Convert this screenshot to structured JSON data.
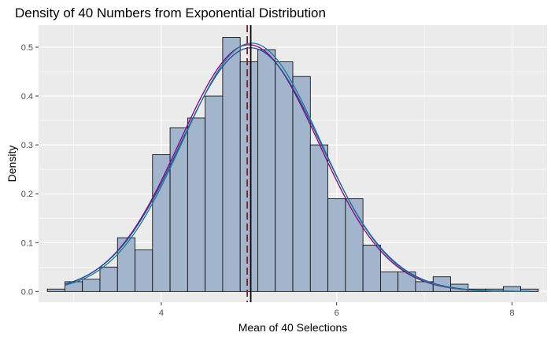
{
  "chart_data": {
    "type": "bar",
    "subtype": "histogram-with-density",
    "title": "Density of 40 Numbers from Exponential Distribution",
    "xlabel": "Mean of 40 Selections",
    "ylabel": "Density",
    "xlim": [
      2.6,
      8.4
    ],
    "ylim": [
      -0.022,
      0.545
    ],
    "x_ticks": [
      4,
      6,
      8
    ],
    "x_minor_ticks": [
      3,
      5,
      7
    ],
    "y_ticks": [
      0.0,
      0.1,
      0.2,
      0.3,
      0.4,
      0.5
    ],
    "y_tick_labels": [
      "0.0",
      "0.1",
      "0.2",
      "0.3",
      "0.4",
      "0.5"
    ],
    "grid": true,
    "bin_width": 0.2,
    "bins": [
      {
        "x0": 2.7,
        "x1": 2.9,
        "density": 0.005
      },
      {
        "x0": 2.9,
        "x1": 3.1,
        "density": 0.02
      },
      {
        "x0": 3.1,
        "x1": 3.3,
        "density": 0.025
      },
      {
        "x0": 3.3,
        "x1": 3.5,
        "density": 0.05
      },
      {
        "x0": 3.5,
        "x1": 3.7,
        "density": 0.11
      },
      {
        "x0": 3.7,
        "x1": 3.9,
        "density": 0.085
      },
      {
        "x0": 3.9,
        "x1": 4.1,
        "density": 0.28
      },
      {
        "x0": 4.1,
        "x1": 4.3,
        "density": 0.335
      },
      {
        "x0": 4.3,
        "x1": 4.5,
        "density": 0.355
      },
      {
        "x0": 4.5,
        "x1": 4.7,
        "density": 0.4
      },
      {
        "x0": 4.7,
        "x1": 4.9,
        "density": 0.52
      },
      {
        "x0": 4.9,
        "x1": 5.1,
        "density": 0.47
      },
      {
        "x0": 5.1,
        "x1": 5.3,
        "density": 0.495
      },
      {
        "x0": 5.3,
        "x1": 5.5,
        "density": 0.47
      },
      {
        "x0": 5.5,
        "x1": 5.7,
        "density": 0.44
      },
      {
        "x0": 5.7,
        "x1": 5.9,
        "density": 0.3
      },
      {
        "x0": 5.9,
        "x1": 6.1,
        "density": 0.19
      },
      {
        "x0": 6.1,
        "x1": 6.3,
        "density": 0.19
      },
      {
        "x0": 6.3,
        "x1": 6.5,
        "density": 0.095
      },
      {
        "x0": 6.5,
        "x1": 6.7,
        "density": 0.04
      },
      {
        "x0": 6.7,
        "x1": 6.9,
        "density": 0.04
      },
      {
        "x0": 6.9,
        "x1": 7.1,
        "density": 0.02
      },
      {
        "x0": 7.1,
        "x1": 7.3,
        "density": 0.03
      },
      {
        "x0": 7.3,
        "x1": 7.5,
        "density": 0.015
      },
      {
        "x0": 7.5,
        "x1": 7.7,
        "density": 0.005
      },
      {
        "x0": 7.7,
        "x1": 7.9,
        "density": 0.005
      },
      {
        "x0": 7.9,
        "x1": 8.1,
        "density": 0.01
      },
      {
        "x0": 8.1,
        "x1": 8.3,
        "density": 0.005
      }
    ],
    "density_curves": [
      {
        "kind": "normal-theoretical",
        "color": "#8B008B",
        "mean": 5.0,
        "sd": 0.79,
        "x_range": [
          2.9,
          8.2
        ]
      },
      {
        "kind": "normal-sample",
        "color": "#1F4E9E",
        "mean": 5.02,
        "sd": 0.8,
        "x_range": [
          2.9,
          8.2
        ]
      },
      {
        "kind": "kernel-density",
        "color": "#1E7B8C",
        "mean": 5.03,
        "sd": 0.785,
        "x_range": [
          2.9,
          8.2
        ]
      }
    ],
    "vlines": [
      {
        "x": 4.98,
        "color": "#7B1E1E",
        "style": "dashed"
      },
      {
        "x": 5.02,
        "color": "#000000",
        "style": "solid"
      }
    ],
    "colors": {
      "panel_background": "#EBEBEB",
      "grid_major": "#FFFFFF",
      "bar_fill": "#A2B5CD",
      "bar_outline": "#000000"
    }
  }
}
